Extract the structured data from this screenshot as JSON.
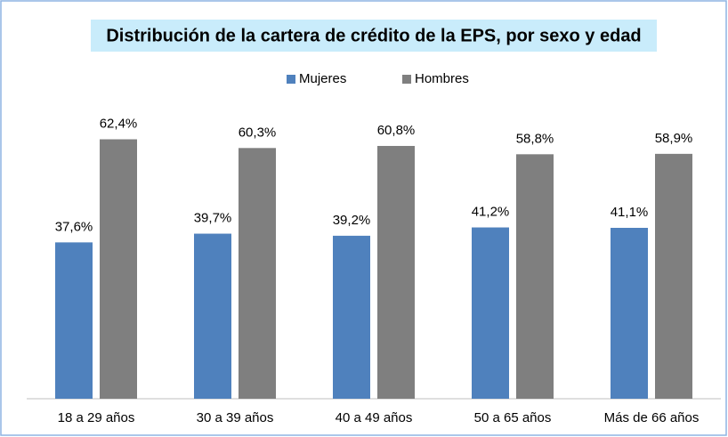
{
  "chart_data": {
    "type": "bar",
    "title": "Distribución de la cartera de crédito de la EPS, por sexo y edad",
    "categories": [
      "18 a 29 años",
      "30 a 39 años",
      "40 a 49 años",
      "50 a 65 años",
      "Más de 66 años"
    ],
    "series": [
      {
        "name": "Mujeres",
        "color": "#4f81bd",
        "values": [
          37.6,
          39.7,
          39.2,
          41.2,
          41.1
        ],
        "value_labels": [
          "37,6%",
          "39,7%",
          "39,2%",
          "41,2%",
          "41,1%"
        ]
      },
      {
        "name": "Hombres",
        "color": "#7f7f7f",
        "values": [
          62.4,
          60.3,
          60.8,
          58.8,
          58.9
        ],
        "value_labels": [
          "62,4%",
          "60,3%",
          "60,8%",
          "58,8%",
          "58,9%"
        ]
      }
    ],
    "ylim": [
      0,
      70
    ],
    "legend": "top"
  }
}
